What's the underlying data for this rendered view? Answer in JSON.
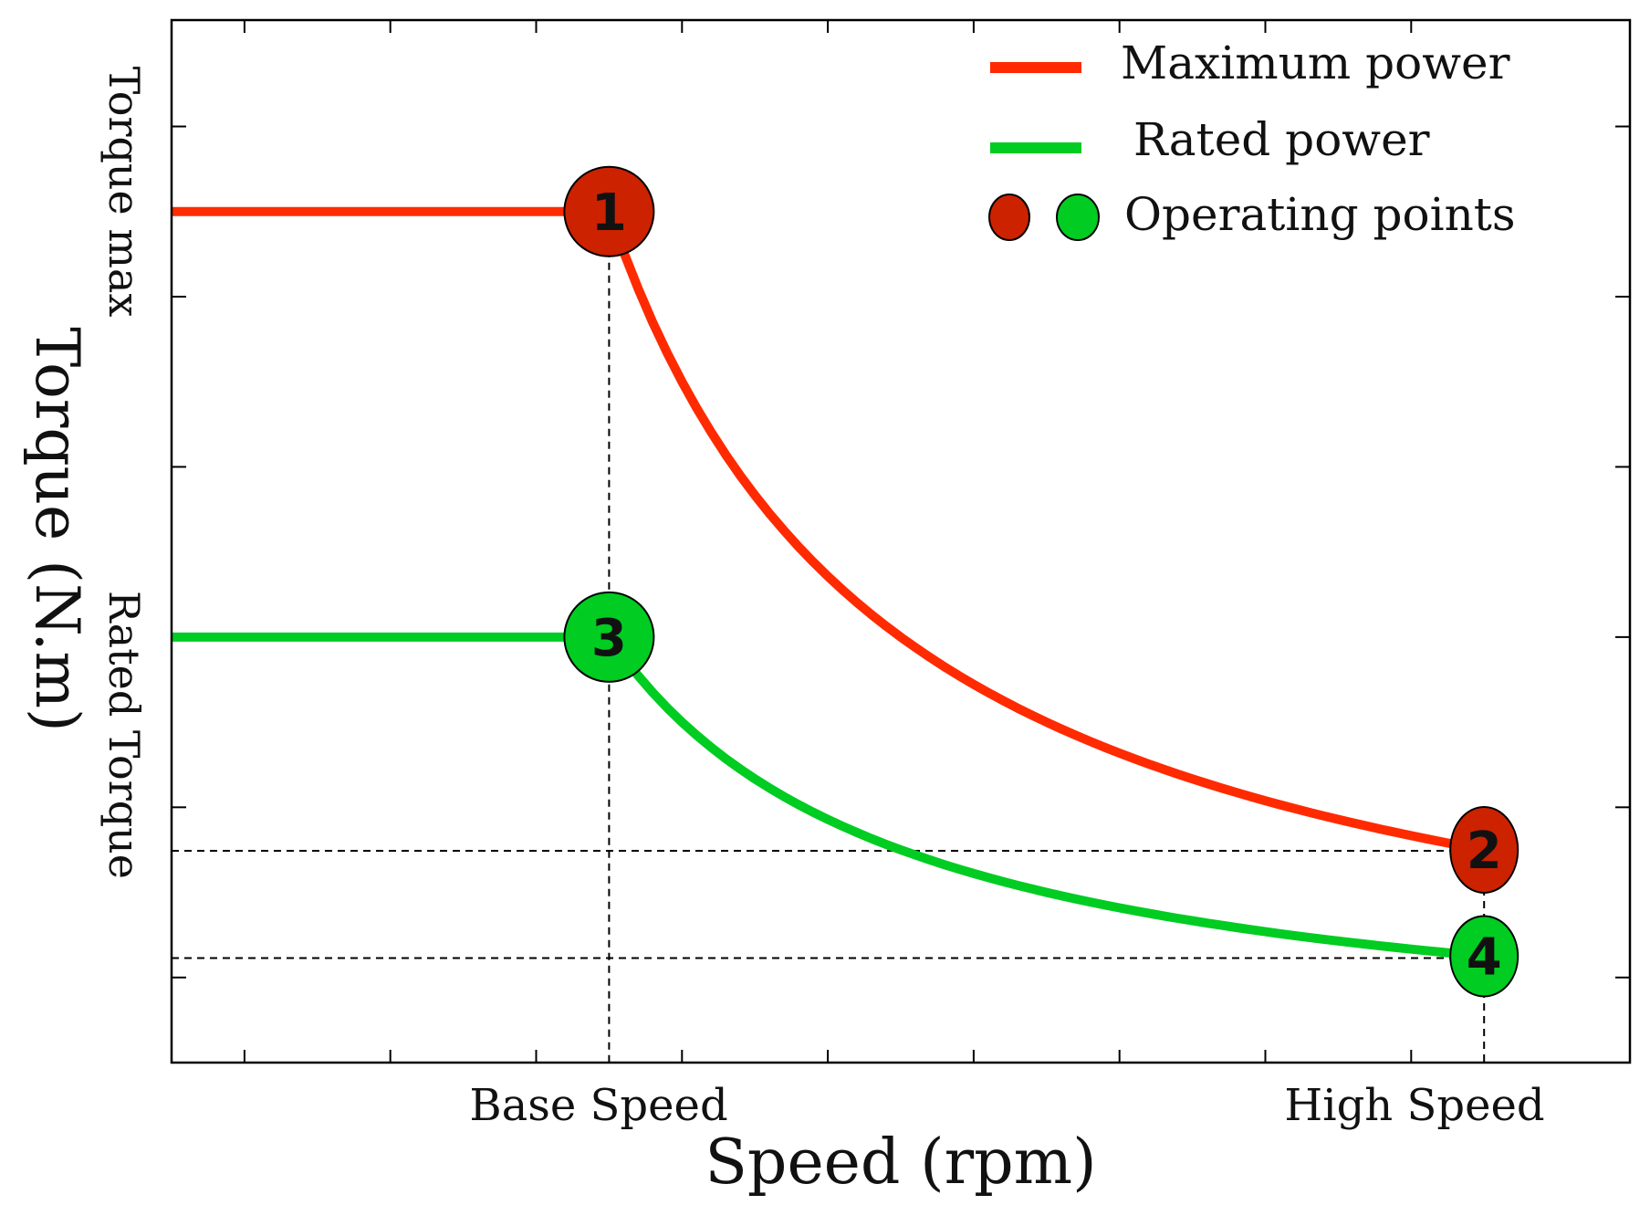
{
  "chart_data": {
    "type": "line",
    "title": "",
    "xlabel": "Speed (rpm)",
    "ylabel": "Torque (N.m)",
    "x_tick_labels": [
      {
        "label": "Base Speed",
        "x": 1
      },
      {
        "label": "High Speed",
        "x": 4
      }
    ],
    "y_tick_labels": [
      {
        "label": "Torque max",
        "y": 2.0
      },
      {
        "label": "Rated Torque",
        "y": 1.0
      }
    ],
    "xlim": [
      -0.5,
      4.5
    ],
    "ylim": [
      0,
      2.45
    ],
    "grid": false,
    "legend_position": "top-right",
    "series": [
      {
        "name": "Maximum power",
        "color": "#ff2a00",
        "x": [
          -0.5,
          1,
          1.5,
          2,
          2.5,
          3,
          3.5,
          4
        ],
        "y": [
          2.0,
          2.0,
          1.333,
          1.0,
          0.8,
          0.667,
          0.571,
          0.5
        ]
      },
      {
        "name": "Rated power",
        "color": "#00cc22",
        "x": [
          -0.5,
          1,
          1.5,
          2,
          2.5,
          3,
          3.5,
          4
        ],
        "y": [
          1.0,
          1.0,
          0.667,
          0.5,
          0.4,
          0.333,
          0.286,
          0.25
        ]
      }
    ],
    "operating_points": [
      {
        "label": "1",
        "x": 1,
        "y": 2.0,
        "color": "#cc2200"
      },
      {
        "label": "2",
        "x": 4,
        "y": 0.5,
        "color": "#cc2200"
      },
      {
        "label": "3",
        "x": 1,
        "y": 1.0,
        "color": "#00cc22"
      },
      {
        "label": "4",
        "x": 4,
        "y": 0.25,
        "color": "#00cc22"
      }
    ],
    "legend": {
      "maximum_power": "Maximum power",
      "rated_power": "Rated power",
      "operating_points": "Operating points"
    }
  }
}
